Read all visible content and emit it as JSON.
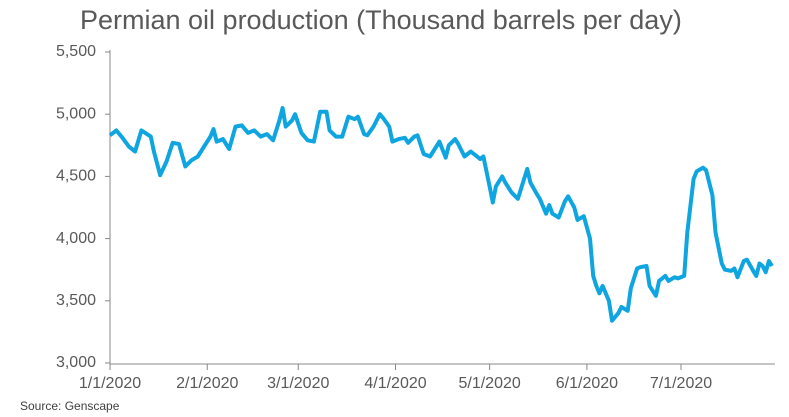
{
  "chart_data": {
    "type": "line",
    "title": "Permian oil production (Thousand barrels per day)",
    "source": "Source: Genscape",
    "x": [
      "2020-01-01",
      "2020-01-03",
      "2020-01-05",
      "2020-01-07",
      "2020-01-09",
      "2020-01-11",
      "2020-01-14",
      "2020-01-15",
      "2020-01-17",
      "2020-01-19",
      "2020-01-21",
      "2020-01-23",
      "2020-01-25",
      "2020-01-27",
      "2020-01-29",
      "2020-01-31",
      "2020-02-02",
      "2020-02-03",
      "2020-02-04",
      "2020-02-06",
      "2020-02-08",
      "2020-02-10",
      "2020-02-12",
      "2020-02-14",
      "2020-02-16",
      "2020-02-18",
      "2020-02-20",
      "2020-02-22",
      "2020-02-24",
      "2020-02-25",
      "2020-02-26",
      "2020-02-28",
      "2020-02-29",
      "2020-03-02",
      "2020-03-04",
      "2020-03-06",
      "2020-03-08",
      "2020-03-10",
      "2020-03-11",
      "2020-03-13",
      "2020-03-15",
      "2020-03-17",
      "2020-03-19",
      "2020-03-20",
      "2020-03-22",
      "2020-03-23",
      "2020-03-25",
      "2020-03-27",
      "2020-03-28",
      "2020-03-30",
      "2020-03-31",
      "2020-04-02",
      "2020-04-04",
      "2020-04-05",
      "2020-04-07",
      "2020-04-08",
      "2020-04-10",
      "2020-04-12",
      "2020-04-13",
      "2020-04-15",
      "2020-04-17",
      "2020-04-18",
      "2020-04-20",
      "2020-04-21",
      "2020-04-23",
      "2020-04-25",
      "2020-04-26",
      "2020-04-28",
      "2020-04-29",
      "2020-05-01",
      "2020-05-02",
      "2020-05-03",
      "2020-05-05",
      "2020-05-06",
      "2020-05-08",
      "2020-05-10",
      "2020-05-11",
      "2020-05-13",
      "2020-05-14",
      "2020-05-16",
      "2020-05-17",
      "2020-05-19",
      "2020-05-20",
      "2020-05-21",
      "2020-05-23",
      "2020-05-25",
      "2020-05-26",
      "2020-05-28",
      "2020-05-29",
      "2020-05-31",
      "2020-06-02",
      "2020-06-03",
      "2020-06-04",
      "2020-06-05",
      "2020-06-06",
      "2020-06-08",
      "2020-06-09",
      "2020-06-11",
      "2020-06-12",
      "2020-06-14",
      "2020-06-15",
      "2020-06-17",
      "2020-06-18",
      "2020-06-20",
      "2020-06-21",
      "2020-06-23",
      "2020-06-24",
      "2020-06-26",
      "2020-06-27",
      "2020-06-29",
      "2020-06-30",
      "2020-07-02",
      "2020-07-03",
      "2020-07-05",
      "2020-07-06",
      "2020-07-08",
      "2020-07-09",
      "2020-07-11",
      "2020-07-12",
      "2020-07-14",
      "2020-07-15",
      "2020-07-17",
      "2020-07-18",
      "2020-07-19",
      "2020-07-21",
      "2020-07-22",
      "2020-07-24",
      "2020-07-25",
      "2020-07-26",
      "2020-07-27",
      "2020-07-28",
      "2020-07-29",
      "2020-07-30"
    ],
    "values": [
      4830,
      4870,
      4810,
      4740,
      4700,
      4870,
      4820,
      4700,
      4510,
      4620,
      4770,
      4760,
      4580,
      4630,
      4660,
      4740,
      4820,
      4880,
      4780,
      4800,
      4720,
      4900,
      4910,
      4850,
      4870,
      4820,
      4840,
      4790,
      4950,
      5050,
      4900,
      4950,
      5000,
      4850,
      4790,
      4780,
      5020,
      5020,
      4870,
      4820,
      4820,
      4980,
      4960,
      4980,
      4840,
      4830,
      4900,
      5000,
      4970,
      4900,
      4780,
      4800,
      4810,
      4770,
      4820,
      4830,
      4680,
      4660,
      4700,
      4780,
      4650,
      4750,
      4800,
      4760,
      4660,
      4700,
      4680,
      4640,
      4660,
      4420,
      4290,
      4420,
      4500,
      4450,
      4370,
      4320,
      4400,
      4560,
      4450,
      4360,
      4320,
      4200,
      4270,
      4200,
      4170,
      4300,
      4340,
      4250,
      4150,
      4180,
      4000,
      3700,
      3620,
      3560,
      3620,
      3500,
      3340,
      3400,
      3450,
      3420,
      3600,
      3760,
      3770,
      3780,
      3620,
      3540,
      3660,
      3700,
      3660,
      3690,
      3680,
      3700,
      4050,
      4480,
      4540,
      4570,
      4550,
      4350,
      4050,
      3800,
      3750,
      3740,
      3760,
      3690,
      3820,
      3830,
      3740,
      3700,
      3800,
      3780,
      3730,
      3820,
      3780
    ],
    "color": "#0ea5e0",
    "xlim": [
      "2020-01-01",
      "2020-07-30"
    ],
    "xticks": [
      {
        "value": "2020-01-01",
        "label": "1/1/2020"
      },
      {
        "value": "2020-02-01",
        "label": "2/1/2020"
      },
      {
        "value": "2020-03-01",
        "label": "3/1/2020"
      },
      {
        "value": "2020-04-01",
        "label": "4/1/2020"
      },
      {
        "value": "2020-05-01",
        "label": "5/1/2020"
      },
      {
        "value": "2020-06-01",
        "label": "6/1/2020"
      },
      {
        "value": "2020-07-01",
        "label": "7/1/2020"
      }
    ],
    "ylim": [
      3000,
      5500
    ],
    "yticks": [
      {
        "value": 3000,
        "label": "3,000"
      },
      {
        "value": 3500,
        "label": "3,500"
      },
      {
        "value": 4000,
        "label": "4,000"
      },
      {
        "value": 4500,
        "label": "4,500"
      },
      {
        "value": 5000,
        "label": "5,000"
      },
      {
        "value": 5500,
        "label": "5,500"
      }
    ],
    "grid": false
  }
}
